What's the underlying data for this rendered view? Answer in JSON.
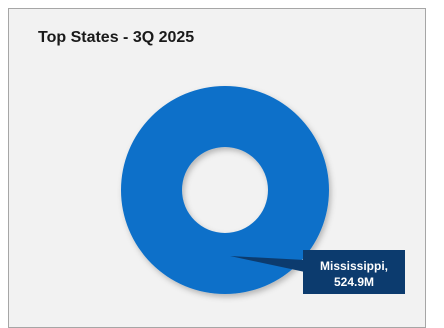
{
  "chart_data": {
    "type": "pie",
    "title": "Top States - 3Q 2025",
    "categories": [
      "Mississippi"
    ],
    "values": [
      524.9
    ],
    "unit": "M",
    "data_labels": [
      {
        "category": "Mississippi",
        "value": "524.9M"
      }
    ],
    "colors": {
      "slice": "#0a6fc9",
      "label_box": "#0c3b6e",
      "label_text": "#ffffff"
    }
  }
}
